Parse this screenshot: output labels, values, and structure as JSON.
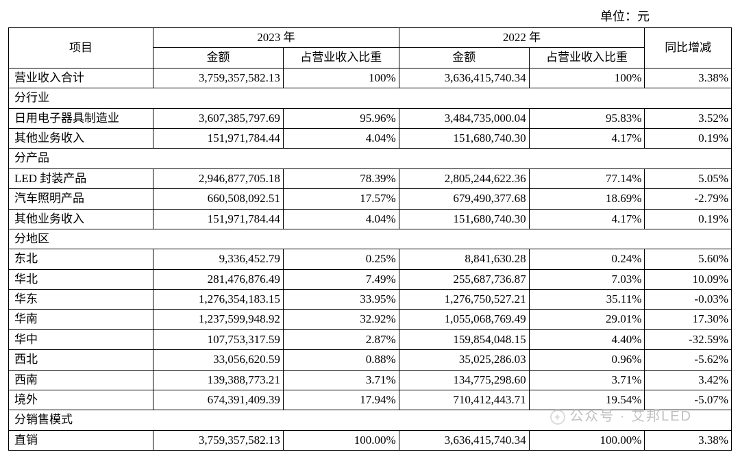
{
  "unit_label": "单位：元",
  "headers": {
    "item": "项目",
    "y2023": "2023 年",
    "y2022": "2022 年",
    "amount": "金额",
    "share": "占营业收入比重",
    "yoy": "同比增减"
  },
  "total": {
    "label": "营业收入合计",
    "amt23": "3,759,357,582.13",
    "pct23": "100%",
    "amt22": "3,636,415,740.34",
    "pct22": "100%",
    "yoy": "3.38%"
  },
  "sections": {
    "industry": {
      "title": "分行业",
      "rows": [
        {
          "label": "日用电子器具制造业",
          "amt23": "3,607,385,797.69",
          "pct23": "95.96%",
          "amt22": "3,484,735,000.04",
          "pct22": "95.83%",
          "yoy": "3.52%"
        },
        {
          "label": "其他业务收入",
          "amt23": "151,971,784.44",
          "pct23": "4.04%",
          "amt22": "151,680,740.30",
          "pct22": "4.17%",
          "yoy": "0.19%"
        }
      ]
    },
    "product": {
      "title": "分产品",
      "rows": [
        {
          "label": "LED 封装产品",
          "amt23": "2,946,877,705.18",
          "pct23": "78.39%",
          "amt22": "2,805,244,622.36",
          "pct22": "77.14%",
          "yoy": "5.05%"
        },
        {
          "label": "汽车照明产品",
          "amt23": "660,508,092.51",
          "pct23": "17.57%",
          "amt22": "679,490,377.68",
          "pct22": "18.69%",
          "yoy": "-2.79%"
        },
        {
          "label": "其他业务收入",
          "amt23": "151,971,784.44",
          "pct23": "4.04%",
          "amt22": "151,680,740.30",
          "pct22": "4.17%",
          "yoy": "0.19%"
        }
      ]
    },
    "region": {
      "title": "分地区",
      "rows": [
        {
          "label": "东北",
          "amt23": "9,336,452.79",
          "pct23": "0.25%",
          "amt22": "8,841,630.28",
          "pct22": "0.24%",
          "yoy": "5.60%"
        },
        {
          "label": "华北",
          "amt23": "281,476,876.49",
          "pct23": "7.49%",
          "amt22": "255,687,736.87",
          "pct22": "7.03%",
          "yoy": "10.09%"
        },
        {
          "label": "华东",
          "amt23": "1,276,354,183.15",
          "pct23": "33.95%",
          "amt22": "1,276,750,527.21",
          "pct22": "35.11%",
          "yoy": "-0.03%"
        },
        {
          "label": "华南",
          "amt23": "1,237,599,948.92",
          "pct23": "32.92%",
          "amt22": "1,055,068,769.49",
          "pct22": "29.01%",
          "yoy": "17.30%"
        },
        {
          "label": "华中",
          "amt23": "107,753,317.59",
          "pct23": "2.87%",
          "amt22": "159,854,048.15",
          "pct22": "4.40%",
          "yoy": "-32.59%"
        },
        {
          "label": "西北",
          "amt23": "33,056,620.59",
          "pct23": "0.88%",
          "amt22": "35,025,286.03",
          "pct22": "0.96%",
          "yoy": "-5.62%"
        },
        {
          "label": "西南",
          "amt23": "139,388,773.21",
          "pct23": "3.71%",
          "amt22": "134,775,298.60",
          "pct22": "3.71%",
          "yoy": "3.42%"
        },
        {
          "label": "境外",
          "amt23": "674,391,409.39",
          "pct23": "17.94%",
          "amt22": "710,412,443.71",
          "pct22": "19.54%",
          "yoy": "-5.07%"
        }
      ]
    },
    "channel": {
      "title": "分销售模式",
      "rows": [
        {
          "label": "直销",
          "amt23": "3,759,357,582.13",
          "pct23": "100.00%",
          "amt22": "3,636,415,740.34",
          "pct22": "100.00%",
          "yoy": "3.38%"
        }
      ]
    }
  },
  "watermark": "公众号 · 艾邦LED",
  "col_widths_pct": [
    20,
    18,
    16,
    18,
    16,
    12
  ],
  "colors": {
    "border": "#000000",
    "text": "#000000",
    "bg": "#ffffff",
    "watermark": "#999999"
  },
  "font_sizes_pt": {
    "body": 13,
    "unit": 13
  }
}
